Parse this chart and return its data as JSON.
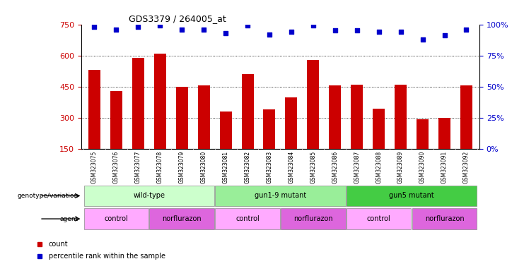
{
  "title": "GDS3379 / 264005_at",
  "samples": [
    "GSM323075",
    "GSM323076",
    "GSM323077",
    "GSM323078",
    "GSM323079",
    "GSM323080",
    "GSM323081",
    "GSM323082",
    "GSM323083",
    "GSM323084",
    "GSM323085",
    "GSM323086",
    "GSM323087",
    "GSM323088",
    "GSM323089",
    "GSM323090",
    "GSM323091",
    "GSM323092"
  ],
  "bar_values": [
    530,
    430,
    590,
    610,
    450,
    455,
    330,
    510,
    340,
    400,
    580,
    455,
    460,
    345,
    460,
    295,
    300,
    455
  ],
  "percentile_values": [
    98,
    96,
    98,
    99,
    96,
    96,
    93,
    99,
    92,
    94,
    99,
    95,
    95,
    94,
    94,
    88,
    91,
    96
  ],
  "bar_color": "#cc0000",
  "dot_color": "#0000cc",
  "ylim_left": [
    150,
    750
  ],
  "ylim_right": [
    0,
    100
  ],
  "yticks_left": [
    150,
    300,
    450,
    600,
    750
  ],
  "yticks_right": [
    0,
    25,
    50,
    75,
    100
  ],
  "grid_values": [
    300,
    450,
    600
  ],
  "groups": [
    {
      "label": "wild-type",
      "start": 0,
      "end": 5,
      "color": "#ccffcc"
    },
    {
      "label": "gun1-9 mutant",
      "start": 6,
      "end": 11,
      "color": "#99ee99"
    },
    {
      "label": "gun5 mutant",
      "start": 12,
      "end": 17,
      "color": "#44cc44"
    }
  ],
  "agents": [
    {
      "label": "control",
      "start": 0,
      "end": 2,
      "color": "#ffaaff"
    },
    {
      "label": "norflurazon",
      "start": 3,
      "end": 5,
      "color": "#dd66dd"
    },
    {
      "label": "control",
      "start": 6,
      "end": 8,
      "color": "#ffaaff"
    },
    {
      "label": "norflurazon",
      "start": 9,
      "end": 11,
      "color": "#dd66dd"
    },
    {
      "label": "control",
      "start": 12,
      "end": 14,
      "color": "#ffaaff"
    },
    {
      "label": "norflurazon",
      "start": 15,
      "end": 17,
      "color": "#dd66dd"
    }
  ],
  "bar_color_hex": "#cc0000",
  "dot_color_hex": "#0000cc",
  "tick_color_left": "#cc0000",
  "tick_color_right": "#0000cc"
}
